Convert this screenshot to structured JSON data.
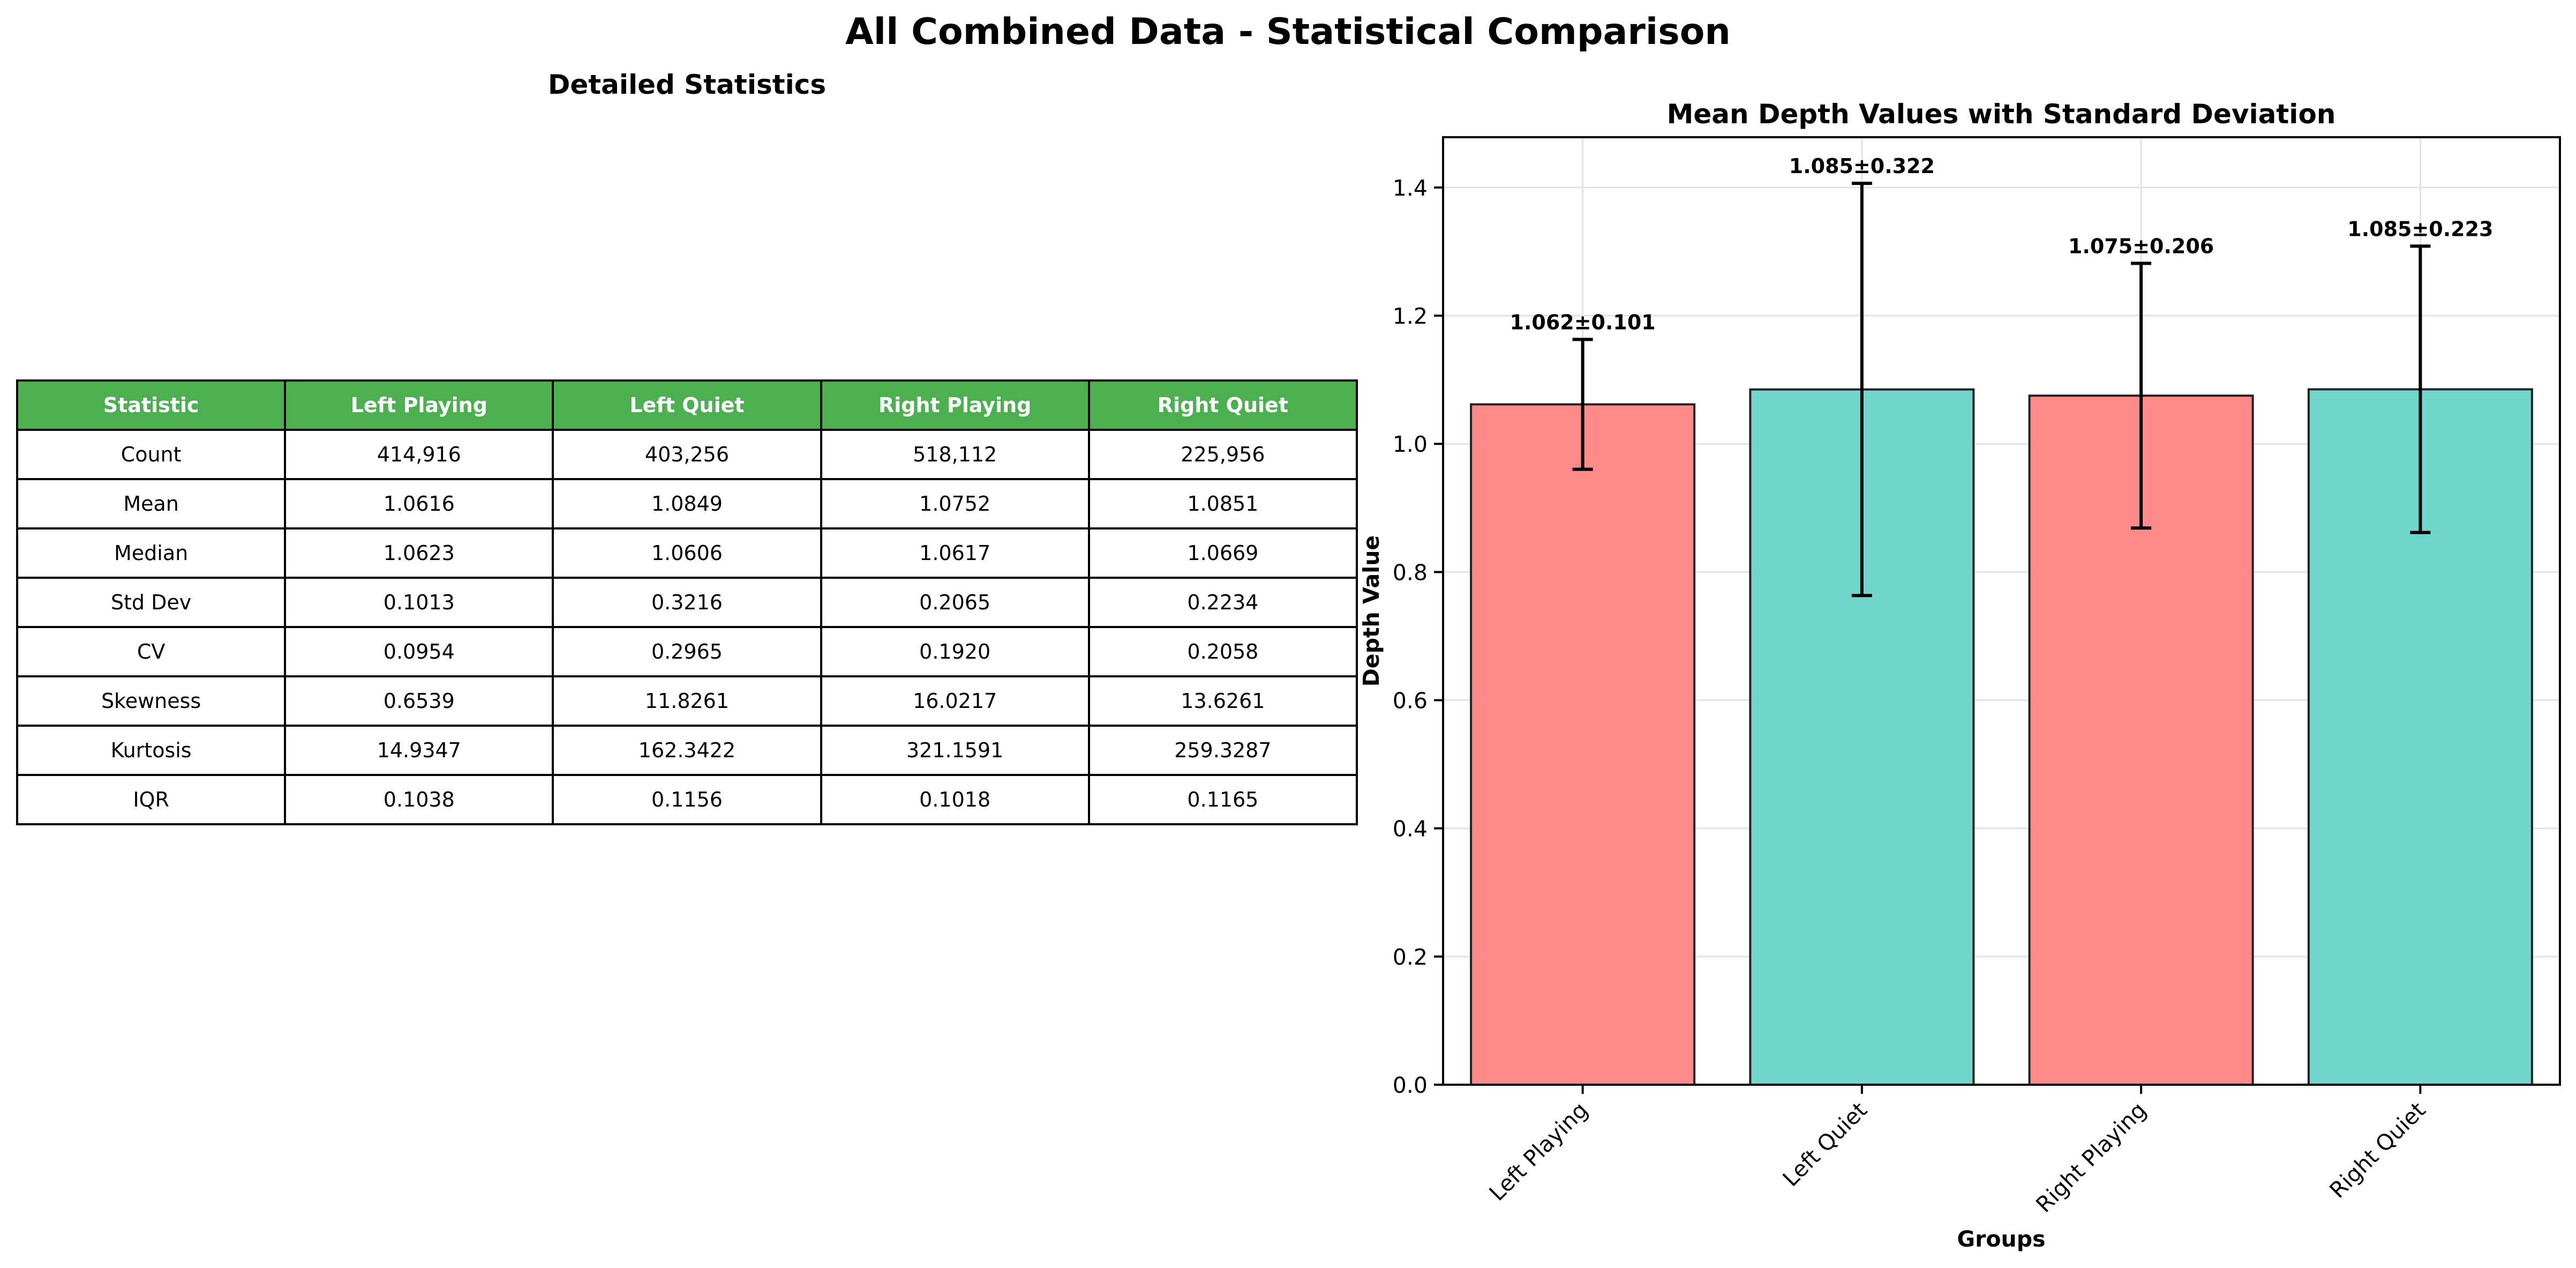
{
  "figure": {
    "title": "All Combined Data - Statistical Comparison"
  },
  "table": {
    "title": "Detailed Statistics",
    "header_color": "#4caf50",
    "columns": [
      "Statistic",
      "Left Playing",
      "Left Quiet",
      "Right Playing",
      "Right Quiet"
    ],
    "rows": [
      [
        "Count",
        "414,916",
        "403,256",
        "518,112",
        "225,956"
      ],
      [
        "Mean",
        "1.0616",
        "1.0849",
        "1.0752",
        "1.0851"
      ],
      [
        "Median",
        "1.0623",
        "1.0606",
        "1.0617",
        "1.0669"
      ],
      [
        "Std Dev",
        "0.1013",
        "0.3216",
        "0.2065",
        "0.2234"
      ],
      [
        "CV",
        "0.0954",
        "0.2965",
        "0.1920",
        "0.2058"
      ],
      [
        "Skewness",
        "0.6539",
        "11.8261",
        "16.0217",
        "13.6261"
      ],
      [
        "Kurtosis",
        "14.9347",
        "162.3422",
        "321.1591",
        "259.3287"
      ],
      [
        "IQR",
        "0.1038",
        "0.1156",
        "0.1018",
        "0.1165"
      ]
    ]
  },
  "chart_data": {
    "type": "bar",
    "title": "Mean Depth Values with Standard Deviation",
    "xlabel": "Groups",
    "ylabel": "Depth Value",
    "categories": [
      "Left Playing",
      "Left Quiet",
      "Right Playing",
      "Right Quiet"
    ],
    "values": [
      1.0616,
      1.0849,
      1.0752,
      1.0851
    ],
    "errors": [
      0.1013,
      0.3216,
      0.2065,
      0.2234
    ],
    "bar_labels": [
      "1.062±0.101",
      "1.085±0.322",
      "1.075±0.206",
      "1.085±0.223"
    ],
    "colors": [
      "#ff8a8a",
      "#72d6cc",
      "#ff8a8a",
      "#72d6cc"
    ],
    "ylim": [
      0,
      1.4785
    ],
    "yticks": [
      0.0,
      0.2,
      0.4,
      0.6,
      0.8,
      1.0,
      1.2,
      1.4
    ],
    "ytick_labels": [
      "0.0",
      "0.2",
      "0.4",
      "0.6",
      "0.8",
      "1.0",
      "1.2",
      "1.4"
    ],
    "grid": true
  }
}
